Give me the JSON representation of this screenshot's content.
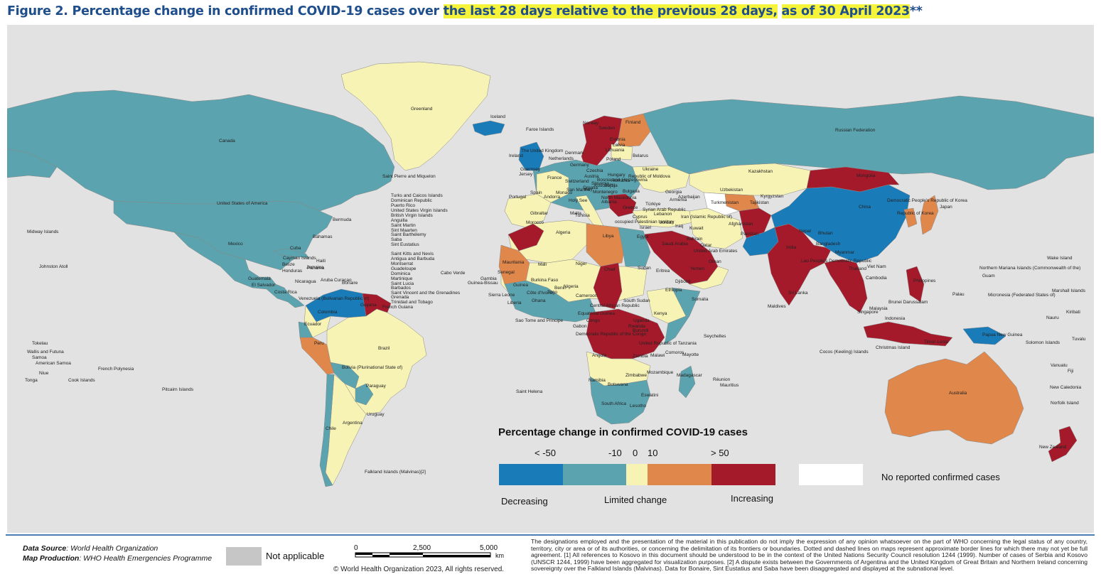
{
  "title": {
    "part1": "Figure 2. Percentage change in confirmed COVID-19 cases over ",
    "highlight1": "the last 28 days relative to the previous 28 days,",
    "space": " ",
    "highlight2": "as of 30 April 2023",
    "suffix": "**"
  },
  "colors": {
    "decreasing_strong": "#1a7bb9",
    "decreasing": "#5ba3ae",
    "limited_change": "#f7f3b4",
    "increasing": "#e0874b",
    "increasing_strong": "#a51a2b",
    "no_cases": "#ffffff",
    "not_applicable": "#c6c6c6",
    "ocean": "#e2e2e2"
  },
  "legend": {
    "title": "Percentage change in confirmed COVID-19 cases",
    "ticks": [
      "< -50",
      "-10",
      "0",
      "10",
      "> 50"
    ],
    "low_label": "Decreasing",
    "mid_label": "Limited change",
    "high_label": "Increasing",
    "no_cases_label": "No reported confirmed cases"
  },
  "country_labels": [
    "Greenland",
    "Iceland",
    "Canada",
    "Faroe Islands",
    "Russian Federation",
    "Norway",
    "Sweden",
    "Finland",
    "Estonia",
    "Latvia",
    "Lithuania",
    "Belarus",
    "Ukraine",
    "Poland",
    "Kazakhstan",
    "Mongolia",
    "United States of America",
    "Saint Pierre and Miquelon",
    "Bermuda",
    "Bahamas",
    "Cuba",
    "Mexico",
    "Cayman Islands",
    "Haiti",
    "Jamaica",
    "Belize",
    "Honduras",
    "Guatemala",
    "El Salvador",
    "Nicaragua",
    "Aruba",
    "Curaçao",
    "Bonaire",
    "Costa Rica",
    "Panama",
    "Venezuela (Bolivarian Republic of)",
    "Guyana",
    "French Guiana",
    "Colombia",
    "Ecuador",
    "Peru",
    "Brazil",
    "Bolivia (Plurinational State of)",
    "Paraguay",
    "Uruguay",
    "Argentina",
    "Chile",
    "Falkland Islands (Malvinas)[2]",
    "Midway Islands",
    "Johnston Atoll",
    "Tokelau",
    "Wallis and Futuna",
    "Samoa",
    "American Samoa",
    "Niue",
    "Tonga",
    "Cook Islands",
    "French Polynesia",
    "Pitcairn Islands",
    "Turks and Caicos Islands",
    "Dominican Republic",
    "Puerto Rico",
    "United States Virgin Islands",
    "British Virgin Islands",
    "Anguilla",
    "Saint Martin",
    "Sint Maarten",
    "Saint Barthélemy",
    "Saba",
    "Sint Eustatius",
    "Saint Kitts and Nevis",
    "Antigua and Barbuda",
    "Montserrat",
    "Guadeloupe",
    "Dominica",
    "Martinique",
    "Saint Lucia",
    "Barbados",
    "Saint Vincent and the Grenadines",
    "Grenada",
    "Trinidad and Tobago",
    "Cabo Verde",
    "Portugal",
    "Spain",
    "France",
    "Ireland",
    "The United Kingdom",
    "Guernsey",
    "Jersey",
    "Netherlands",
    "Denmark",
    "Germany",
    "Switzerland",
    "Italy",
    "Monaco",
    "Andorra",
    "San Marino",
    "Holy See",
    "Malta",
    "Greece",
    "Albania",
    "North Macedonia",
    "Bulgaria",
    "Romania",
    "Republic of Moldova",
    "Hungary",
    "Czechia",
    "Austria",
    "Slovenia",
    "Croatia",
    "Bosnia and Herzegovina",
    "Serbia",
    "Kosovo[1]",
    "Montenegro",
    "Gibraltar",
    "Morocco",
    "Algeria",
    "Tunisia",
    "Libya",
    "Egypt",
    "Türkiye",
    "Georgia",
    "Armenia",
    "Azerbaijan",
    "Cyprus",
    "Lebanon",
    "Syrian Arab Republic",
    "occupied Palestinian territory",
    "Israel",
    "Jordan",
    "Iraq",
    "Iran (Islamic Republic of)",
    "Kuwait",
    "Saudi Arabia",
    "Bahrain",
    "Qatar",
    "United Arab Emirates",
    "Oman",
    "Yemen",
    "Turkmenistan",
    "Uzbekistan",
    "Kyrgyzstan",
    "Tajikistan",
    "Afghanistan",
    "Pakistan",
    "India",
    "Nepal",
    "Bhutan",
    "Bangladesh",
    "Myanmar",
    "China",
    "Democratic People's Republic of Korea",
    "Republic of Korea",
    "Japan",
    "Lao People's Democratic Republic",
    "Thailand",
    "Viet Nam",
    "Cambodia",
    "Philippines",
    "Malaysia",
    "Brunei Darussalam",
    "Singapore",
    "Indonesia",
    "Timor-Leste",
    "Papua New Guinea",
    "Sri Lanka",
    "Maldives",
    "Christmas Island",
    "Cocos (Keeling) Islands",
    "Australia",
    "New Zealand",
    "New Caledonia",
    "Norfolk Island",
    "Vanuatu",
    "Fiji",
    "Solomon Islands",
    "Tuvalu",
    "Nauru",
    "Kiribati",
    "Marshall Islands",
    "Micronesia (Federated States of)",
    "Palau",
    "Guam",
    "Northern Mariana Islands (Commonwealth of the)",
    "Wake Island",
    "Mauritania",
    "Mali",
    "Niger",
    "Chad",
    "Sudan",
    "Eritrea",
    "Djibouti",
    "Ethiopia",
    "Somalia",
    "Senegal",
    "Gambia",
    "Guinea-Bissau",
    "Guinea",
    "Sierra Leone",
    "Liberia",
    "Côte d'Ivoire",
    "Burkina Faso",
    "Ghana",
    "Togo",
    "Benin",
    "Nigeria",
    "Cameroon",
    "Central African Republic",
    "South Sudan",
    "Equatorial Guinea",
    "Sao Tome and Principe",
    "Gabon",
    "Congo",
    "Democratic Republic of the Congo",
    "Uganda",
    "Kenya",
    "Rwanda",
    "Burundi",
    "United Republic of Tanzania",
    "Seychelles",
    "Comoros",
    "Mayotte",
    "Angola",
    "Zambia",
    "Malawi",
    "Mozambique",
    "Madagascar",
    "Réunion",
    "Mauritius",
    "Zimbabwe",
    "Namibia",
    "Botswana",
    "South Africa",
    "Eswatini",
    "Lesotho",
    "Saint Helena"
  ],
  "footer": {
    "data_source_label": "Data Source",
    "data_source_value": ": World Health Organization",
    "map_production_label": "Map Production",
    "map_production_value": ": WHO Health Emergencies Programme",
    "not_applicable_label": "Not applicable",
    "scale_ticks": [
      "0",
      "2,500",
      "5,000"
    ],
    "scale_unit": "km",
    "copyright": "© World Health Organization  2023,  All rights reserved.",
    "disclaimer": "The designations employed and the presentation of the material in this publication do not imply the expression of any opinion whatsoever on the part of WHO concerning the legal status of any country, territory, city or area or of its authorities, or concerning the delimitation of its frontiers or boundaries. Dotted and dashed lines on maps represent approximate border lines for which there may not yet be full agreement. [1] All references to Kosovo in this document should be understood to be in the context of the United Nations Security Council resolution 1244 (1999). Number of cases of Serbia and Kosovo (UNSCR 1244, 1999) have been aggregated for visualization purposes. [2] A dispute exists between the Governments of Argentina and the United Kingdom of Great Britain and Northern Ireland concerning sovereignty over the Falkland Islands (Malvinas). Data for Bonaire, Sint Eustatius and Saba have been disaggregated and displayed at the subnational level."
  }
}
